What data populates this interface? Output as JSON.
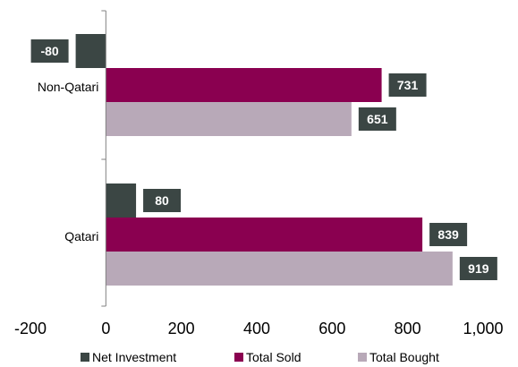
{
  "chart_data": {
    "type": "bar",
    "orientation": "horizontal",
    "categories": [
      "Non-Qatari",
      "Qatari"
    ],
    "series": [
      {
        "name": "Net Investment",
        "values": [
          -80,
          80
        ],
        "color": "#3b4644"
      },
      {
        "name": "Total Sold",
        "values": [
          731,
          839
        ],
        "color": "#8a0050"
      },
      {
        "name": "Total Bought",
        "values": [
          651,
          919
        ],
        "color": "#b8a9b8"
      }
    ],
    "data_labels": [
      [
        "-80",
        "80"
      ],
      [
        "731",
        "839"
      ],
      [
        "651",
        "919"
      ]
    ],
    "x_ticks": [
      "-200",
      "0",
      "200",
      "400",
      "600",
      "800",
      "1,000"
    ],
    "xlim": [
      -200,
      1000
    ],
    "label_box_color": "#3b4644",
    "grid": false,
    "legend_position": "bottom"
  }
}
